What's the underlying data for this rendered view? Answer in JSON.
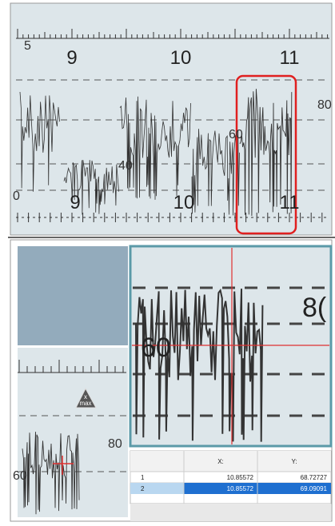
{
  "scan": {
    "top_labels": [
      "5",
      "9",
      "10",
      "11"
    ],
    "curve_labels": [
      "80",
      "60",
      "40"
    ],
    "bottom_labels": [
      "0",
      "9",
      "10",
      "11"
    ]
  },
  "inset": {
    "marker": [
      "x",
      "max"
    ],
    "labels": [
      "80",
      "60"
    ]
  },
  "zoom": {
    "labels": [
      "60",
      "8("
    ]
  },
  "table": {
    "header": [
      "X:",
      "Y:"
    ],
    "rows": [
      [
        "1",
        "10.85572",
        "68.72727"
      ],
      [
        "2",
        "10.85572",
        "69.09091"
      ]
    ]
  }
}
